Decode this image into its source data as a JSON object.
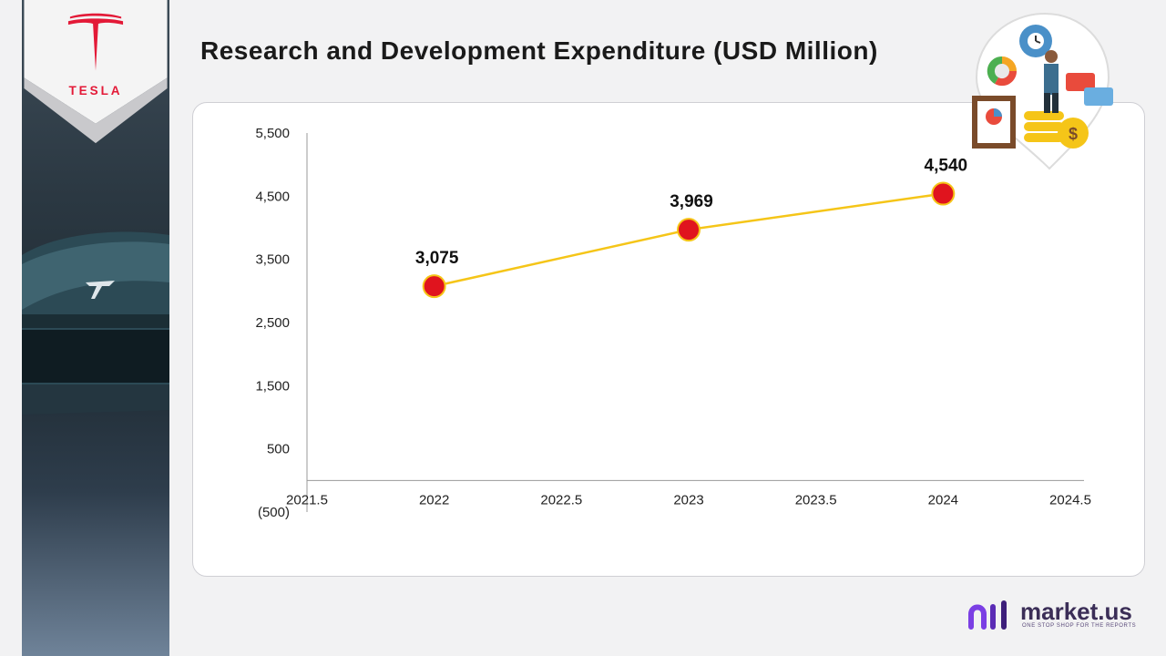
{
  "logo": {
    "wordmark": "TESLA",
    "icon": "tesla-t-icon"
  },
  "title": "Research and Development  Expenditure (USD Million)",
  "brand": {
    "name": "market.us",
    "tagline": "ONE STOP SHOP FOR THE REPORTS",
    "icon": "market-us-logo-icon"
  },
  "illustration": {
    "icon": "business-analytics-illustration-icon"
  },
  "colors": {
    "line": "#f5c518",
    "marker": "#e0141e",
    "marker_stroke": "#f5c518",
    "axis": "#999999"
  },
  "chart_data": {
    "type": "line",
    "title": "Research and Development  Expenditure (USD Million)",
    "xlabel": "",
    "ylabel": "",
    "x": [
      2022,
      2023,
      2024
    ],
    "series": [
      {
        "values": [
          3075,
          3969,
          4540
        ]
      }
    ],
    "data_labels": [
      "3,075",
      "3,969",
      "4,540"
    ],
    "xlim": [
      2021.5,
      2024.5
    ],
    "ylim": [
      -500,
      5500
    ],
    "x_ticks": [
      2021.5,
      2022,
      2022.5,
      2023,
      2023.5,
      2024,
      2024.5
    ],
    "x_tick_labels": [
      "2021.5",
      "2022",
      "2022.5",
      "2023",
      "2023.5",
      "2024",
      "2024.5"
    ],
    "y_ticks": [
      -500,
      500,
      1500,
      2500,
      3500,
      4500,
      5500
    ],
    "y_tick_labels": [
      "(500)",
      "500",
      "1,500",
      "2,500",
      "3,500",
      "4,500",
      "5,500"
    ],
    "x_axis_at": 0,
    "grid": false,
    "legend": "none"
  }
}
